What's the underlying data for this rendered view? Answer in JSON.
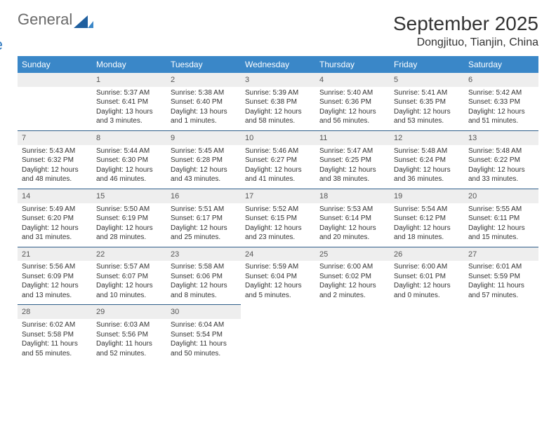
{
  "logo": {
    "part1": "General",
    "part2": "Blue",
    "color_gray": "#6a6a6a",
    "color_blue": "#2f78bf"
  },
  "title": "September 2025",
  "location": "Dongjituo, Tianjin, China",
  "header_bg": "#3a87c8",
  "header_fg": "#ffffff",
  "daynum_bg": "#eeeeee",
  "row_border": "#2f5e8a",
  "days": [
    "Sunday",
    "Monday",
    "Tuesday",
    "Wednesday",
    "Thursday",
    "Friday",
    "Saturday"
  ],
  "weeks": [
    {
      "nums": [
        "",
        "1",
        "2",
        "3",
        "4",
        "5",
        "6"
      ],
      "cells": [
        {
          "sunrise": "",
          "sunset": "",
          "daylight": ""
        },
        {
          "sunrise": "Sunrise: 5:37 AM",
          "sunset": "Sunset: 6:41 PM",
          "daylight": "Daylight: 13 hours and 3 minutes."
        },
        {
          "sunrise": "Sunrise: 5:38 AM",
          "sunset": "Sunset: 6:40 PM",
          "daylight": "Daylight: 13 hours and 1 minutes."
        },
        {
          "sunrise": "Sunrise: 5:39 AM",
          "sunset": "Sunset: 6:38 PM",
          "daylight": "Daylight: 12 hours and 58 minutes."
        },
        {
          "sunrise": "Sunrise: 5:40 AM",
          "sunset": "Sunset: 6:36 PM",
          "daylight": "Daylight: 12 hours and 56 minutes."
        },
        {
          "sunrise": "Sunrise: 5:41 AM",
          "sunset": "Sunset: 6:35 PM",
          "daylight": "Daylight: 12 hours and 53 minutes."
        },
        {
          "sunrise": "Sunrise: 5:42 AM",
          "sunset": "Sunset: 6:33 PM",
          "daylight": "Daylight: 12 hours and 51 minutes."
        }
      ]
    },
    {
      "nums": [
        "7",
        "8",
        "9",
        "10",
        "11",
        "12",
        "13"
      ],
      "cells": [
        {
          "sunrise": "Sunrise: 5:43 AM",
          "sunset": "Sunset: 6:32 PM",
          "daylight": "Daylight: 12 hours and 48 minutes."
        },
        {
          "sunrise": "Sunrise: 5:44 AM",
          "sunset": "Sunset: 6:30 PM",
          "daylight": "Daylight: 12 hours and 46 minutes."
        },
        {
          "sunrise": "Sunrise: 5:45 AM",
          "sunset": "Sunset: 6:28 PM",
          "daylight": "Daylight: 12 hours and 43 minutes."
        },
        {
          "sunrise": "Sunrise: 5:46 AM",
          "sunset": "Sunset: 6:27 PM",
          "daylight": "Daylight: 12 hours and 41 minutes."
        },
        {
          "sunrise": "Sunrise: 5:47 AM",
          "sunset": "Sunset: 6:25 PM",
          "daylight": "Daylight: 12 hours and 38 minutes."
        },
        {
          "sunrise": "Sunrise: 5:48 AM",
          "sunset": "Sunset: 6:24 PM",
          "daylight": "Daylight: 12 hours and 36 minutes."
        },
        {
          "sunrise": "Sunrise: 5:48 AM",
          "sunset": "Sunset: 6:22 PM",
          "daylight": "Daylight: 12 hours and 33 minutes."
        }
      ]
    },
    {
      "nums": [
        "14",
        "15",
        "16",
        "17",
        "18",
        "19",
        "20"
      ],
      "cells": [
        {
          "sunrise": "Sunrise: 5:49 AM",
          "sunset": "Sunset: 6:20 PM",
          "daylight": "Daylight: 12 hours and 31 minutes."
        },
        {
          "sunrise": "Sunrise: 5:50 AM",
          "sunset": "Sunset: 6:19 PM",
          "daylight": "Daylight: 12 hours and 28 minutes."
        },
        {
          "sunrise": "Sunrise: 5:51 AM",
          "sunset": "Sunset: 6:17 PM",
          "daylight": "Daylight: 12 hours and 25 minutes."
        },
        {
          "sunrise": "Sunrise: 5:52 AM",
          "sunset": "Sunset: 6:15 PM",
          "daylight": "Daylight: 12 hours and 23 minutes."
        },
        {
          "sunrise": "Sunrise: 5:53 AM",
          "sunset": "Sunset: 6:14 PM",
          "daylight": "Daylight: 12 hours and 20 minutes."
        },
        {
          "sunrise": "Sunrise: 5:54 AM",
          "sunset": "Sunset: 6:12 PM",
          "daylight": "Daylight: 12 hours and 18 minutes."
        },
        {
          "sunrise": "Sunrise: 5:55 AM",
          "sunset": "Sunset: 6:11 PM",
          "daylight": "Daylight: 12 hours and 15 minutes."
        }
      ]
    },
    {
      "nums": [
        "21",
        "22",
        "23",
        "24",
        "25",
        "26",
        "27"
      ],
      "cells": [
        {
          "sunrise": "Sunrise: 5:56 AM",
          "sunset": "Sunset: 6:09 PM",
          "daylight": "Daylight: 12 hours and 13 minutes."
        },
        {
          "sunrise": "Sunrise: 5:57 AM",
          "sunset": "Sunset: 6:07 PM",
          "daylight": "Daylight: 12 hours and 10 minutes."
        },
        {
          "sunrise": "Sunrise: 5:58 AM",
          "sunset": "Sunset: 6:06 PM",
          "daylight": "Daylight: 12 hours and 8 minutes."
        },
        {
          "sunrise": "Sunrise: 5:59 AM",
          "sunset": "Sunset: 6:04 PM",
          "daylight": "Daylight: 12 hours and 5 minutes."
        },
        {
          "sunrise": "Sunrise: 6:00 AM",
          "sunset": "Sunset: 6:02 PM",
          "daylight": "Daylight: 12 hours and 2 minutes."
        },
        {
          "sunrise": "Sunrise: 6:00 AM",
          "sunset": "Sunset: 6:01 PM",
          "daylight": "Daylight: 12 hours and 0 minutes."
        },
        {
          "sunrise": "Sunrise: 6:01 AM",
          "sunset": "Sunset: 5:59 PM",
          "daylight": "Daylight: 11 hours and 57 minutes."
        }
      ]
    },
    {
      "nums": [
        "28",
        "29",
        "30",
        "",
        "",
        "",
        ""
      ],
      "cells": [
        {
          "sunrise": "Sunrise: 6:02 AM",
          "sunset": "Sunset: 5:58 PM",
          "daylight": "Daylight: 11 hours and 55 minutes."
        },
        {
          "sunrise": "Sunrise: 6:03 AM",
          "sunset": "Sunset: 5:56 PM",
          "daylight": "Daylight: 11 hours and 52 minutes."
        },
        {
          "sunrise": "Sunrise: 6:04 AM",
          "sunset": "Sunset: 5:54 PM",
          "daylight": "Daylight: 11 hours and 50 minutes."
        },
        {
          "sunrise": "",
          "sunset": "",
          "daylight": ""
        },
        {
          "sunrise": "",
          "sunset": "",
          "daylight": ""
        },
        {
          "sunrise": "",
          "sunset": "",
          "daylight": ""
        },
        {
          "sunrise": "",
          "sunset": "",
          "daylight": ""
        }
      ]
    }
  ]
}
